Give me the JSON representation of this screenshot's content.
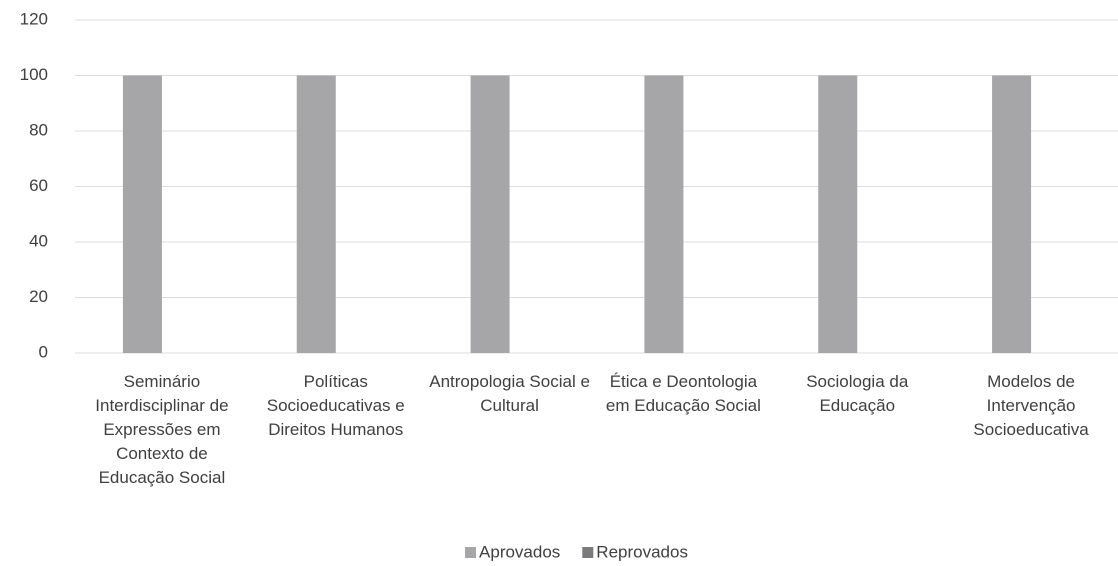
{
  "chart_data": {
    "type": "bar",
    "categories": [
      "Seminário Interdisciplinar de Expressões em Contexto de Educação Social",
      "Políticas Socioeducativas e Direitos Humanos",
      "Antropologia Social e Cultural",
      "Ética e Deontologia em Educação Social",
      "Sociologia da Educação",
      "Modelos de Intervenção Socioeducativa"
    ],
    "series": [
      {
        "name": "Aprovados",
        "color": "#a6a6a8",
        "values": [
          100,
          100,
          100,
          100,
          100,
          100
        ]
      },
      {
        "name": "Reprovados",
        "color": "#7a7a7d",
        "values": [
          0,
          0,
          0,
          0,
          0,
          0
        ]
      }
    ],
    "ylim": [
      0,
      120
    ],
    "yticks": [
      0,
      20,
      40,
      60,
      80,
      100,
      120
    ],
    "grid": true,
    "legend": "bottom"
  }
}
